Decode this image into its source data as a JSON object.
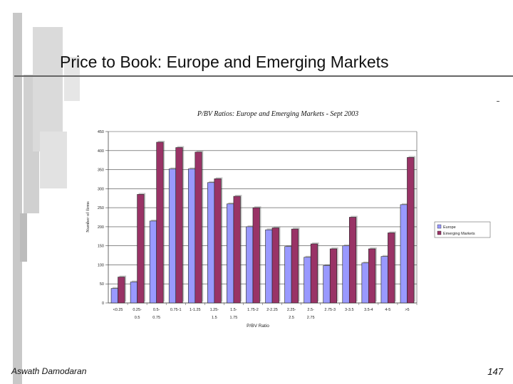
{
  "slide": {
    "title": "Price to Book: Europe and Emerging Markets",
    "footer_author": "Aswath Damodaran",
    "page_number": "147"
  },
  "colors": {
    "europe": "#9999ff",
    "emerging": "#993366",
    "deco_dark": "#c8c8c8",
    "deco_light": "#e4e4e4"
  },
  "chart_data": {
    "type": "bar",
    "title": "P/BV Ratios: Europe and Emerging Markets - Sept 2003",
    "xlabel": "P/BV Ratio",
    "ylabel": "Number of firms",
    "ylim": [
      0,
      450
    ],
    "yticks": [
      0,
      50,
      100,
      150,
      200,
      250,
      300,
      350,
      400,
      450
    ],
    "grid": true,
    "legend_position": "right",
    "categories": [
      "<0.25",
      "0.25-0.5",
      "0.5-0.75",
      "0.75-1",
      "1-1.25",
      "1.25-1.5",
      "1.5-1.75",
      "1.75-2",
      "2-2.25",
      "2.25-2.5",
      "2.5-2.75",
      "2.75-3",
      "3-3.5",
      "3.5-4",
      "4-5",
      ">5"
    ],
    "tick_lines": [
      [
        "<0.25"
      ],
      [
        "0.25-",
        "0.5"
      ],
      [
        "0.5-",
        "0.75"
      ],
      [
        "0.75-1"
      ],
      [
        "1-1.25"
      ],
      [
        "1.25-",
        "1.5"
      ],
      [
        "1.5-",
        "1.75"
      ],
      [
        "1.75-2"
      ],
      [
        "2-2.25"
      ],
      [
        "2.25-",
        "2.5"
      ],
      [
        "2.5-",
        "2.75"
      ],
      [
        "2.75-3"
      ],
      [
        "3-3.5"
      ],
      [
        "3.5-4"
      ],
      [
        "4-5"
      ],
      [
        ">5"
      ]
    ],
    "series": [
      {
        "name": "Europe",
        "values": [
          38,
          55,
          215,
          352,
          352,
          316,
          260,
          200,
          192,
          148,
          120,
          98,
          150,
          105,
          122,
          258
        ]
      },
      {
        "name": "Emerging Markets",
        "values": [
          68,
          285,
          422,
          408,
          396,
          326,
          280,
          250,
          197,
          194,
          155,
          142,
          225,
          142,
          184,
          382
        ]
      }
    ]
  }
}
